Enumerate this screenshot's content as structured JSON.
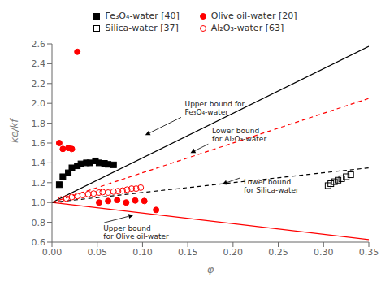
{
  "chart_data": {
    "type": "scatter",
    "xlabel": "φ",
    "ylabel": "ke/kf",
    "xlim": [
      0.0,
      0.35
    ],
    "ylim": [
      0.6,
      2.6
    ],
    "xticks": [
      {
        "value": 0.0,
        "label": "0.00"
      },
      0.05,
      {
        "value": 0.1,
        "label": "0.10"
      },
      0.15,
      {
        "value": 0.2,
        "label": "0.20"
      },
      0.25,
      {
        "value": 0.3,
        "label": "0.30"
      },
      0.35
    ],
    "yticks": [
      0.6,
      0.8,
      {
        "value": 1.0,
        "label": "1.0"
      },
      1.2,
      1.4,
      1.6,
      1.8,
      {
        "value": 2.0,
        "label": "2.0"
      },
      2.2,
      2.4,
      2.6
    ],
    "grid": false,
    "legend": "top",
    "series": [
      {
        "type": "line",
        "line_style": "solid",
        "color": "black",
        "x": [
          0.0,
          0.35
        ],
        "values": [
          1.0,
          2.575
        ]
      },
      {
        "type": "line",
        "line_style": "solid",
        "color": "red",
        "x": [
          0.0,
          0.35
        ],
        "values": [
          1.0,
          0.625
        ]
      },
      {
        "type": "line",
        "line_style": "dashed",
        "color": "red",
        "x": [
          0.0,
          0.35
        ],
        "values": [
          1.0,
          2.05
        ]
      },
      {
        "type": "line",
        "line_style": "dashed",
        "color": "black",
        "x": [
          0.0,
          0.35
        ],
        "values": [
          1.0,
          1.35
        ]
      },
      {
        "name": "Fe₃O₄-water [40]",
        "type": "scatter",
        "marker": "square",
        "color": "black",
        "x": [
          0.008,
          0.012,
          0.018,
          0.022,
          0.028,
          0.032,
          0.038,
          0.042,
          0.048,
          0.052,
          0.058,
          0.062,
          0.068
        ],
        "values": [
          1.18,
          1.26,
          1.3,
          1.35,
          1.37,
          1.39,
          1.4,
          1.4,
          1.42,
          1.4,
          1.395,
          1.385,
          1.38
        ]
      },
      {
        "name": "Olive oil-water [20]",
        "type": "scatter",
        "marker": "circle",
        "color": "red",
        "x": [
          0.008,
          0.012,
          0.018,
          0.022,
          0.028,
          0.052,
          0.062,
          0.072,
          0.082,
          0.092,
          0.102,
          0.115
        ],
        "values": [
          1.6,
          1.54,
          1.55,
          1.54,
          2.52,
          1.0,
          1.015,
          1.025,
          1.0,
          1.02,
          1.015,
          0.925
        ]
      },
      {
        "name": "Silica-water [37]",
        "type": "scatter",
        "marker": "square_open",
        "color": "black",
        "x": [
          0.305,
          0.308,
          0.312,
          0.316,
          0.32,
          0.325,
          0.33
        ],
        "values": [
          1.17,
          1.19,
          1.21,
          1.225,
          1.24,
          1.26,
          1.28
        ]
      },
      {
        "name": "Al₂O₃-water [63]",
        "type": "scatter",
        "marker": "circle_open",
        "color": "red",
        "x": [
          0.01,
          0.016,
          0.022,
          0.028,
          0.034,
          0.04,
          0.046,
          0.052,
          0.056,
          0.062,
          0.068,
          0.073,
          0.078,
          0.083,
          0.088,
          0.093,
          0.098
        ],
        "values": [
          1.03,
          1.04,
          1.055,
          1.065,
          1.075,
          1.085,
          1.09,
          1.1,
          1.105,
          1.1,
          1.11,
          1.115,
          1.12,
          1.13,
          1.14,
          1.14,
          1.15
        ]
      }
    ],
    "annotations": [
      {
        "text": "Upper bound for\nFe₃O₄-water",
        "x": 0.145,
        "y": 1.87,
        "x_tip": 0.103,
        "y_tip": 1.68
      },
      {
        "text": "Lower bound\nfor Al₂O₃-water",
        "x": 0.175,
        "y": 1.6,
        "x_tip": 0.153,
        "y_tip": 1.5
      },
      {
        "text": "Lower bound\nfor Silica-water",
        "x": 0.21,
        "y": 1.255,
        "x_tip": 0.188,
        "y_tip": 1.185
      },
      {
        "text": "Upper bound\nfor Olive oil-water",
        "x": 0.055,
        "y": 0.79,
        "x_tip": 0.09,
        "y_tip": 0.873
      }
    ]
  }
}
